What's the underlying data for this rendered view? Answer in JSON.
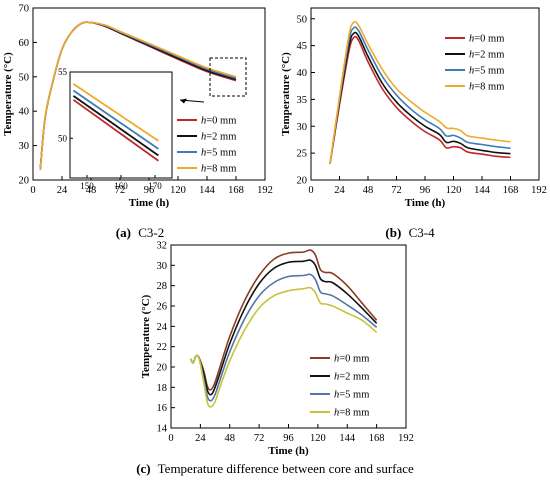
{
  "figure": {
    "captions": {
      "a": {
        "label": "(a)",
        "text": "C3-2"
      },
      "b": {
        "label": "(b)",
        "text": "C3-4"
      },
      "c": {
        "label": "(c)",
        "text": "Temperature difference between core and surface"
      }
    }
  },
  "chart_data": [
    {
      "id": "a",
      "type": "line",
      "xlabel": "Time (h)",
      "ylabel": "Temperature (°C)",
      "xlim": [
        0,
        192
      ],
      "ylim": [
        20,
        70
      ],
      "xticks": [
        0,
        24,
        48,
        72,
        96,
        120,
        144,
        168,
        192
      ],
      "yticks": [
        20,
        30,
        40,
        50,
        60,
        70
      ],
      "legend_position": "bottom-right",
      "grid": false,
      "series": [
        {
          "name": "h=0 mm",
          "color": "#c0272d",
          "x": [
            6,
            10,
            16,
            24,
            32,
            40,
            48,
            60,
            72,
            96,
            120,
            144,
            168
          ],
          "y": [
            23,
            38,
            48,
            58,
            63,
            65.5,
            65.8,
            64.6,
            62.7,
            58.9,
            55.1,
            51.5,
            48.9
          ]
        },
        {
          "name": "h=2 mm",
          "color": "#111111",
          "x": [
            6,
            10,
            16,
            24,
            32,
            40,
            48,
            60,
            72,
            96,
            120,
            144,
            168
          ],
          "y": [
            23,
            38,
            48,
            58,
            63,
            65.5,
            65.8,
            64.7,
            62.8,
            59.1,
            55.4,
            51.8,
            49.2
          ]
        },
        {
          "name": "h=5 mm",
          "color": "#3d7cb8",
          "x": [
            6,
            10,
            16,
            24,
            32,
            40,
            48,
            60,
            72,
            96,
            120,
            144,
            168
          ],
          "y": [
            23,
            38,
            48,
            58,
            63,
            65.5,
            65.8,
            64.8,
            63.0,
            59.4,
            55.8,
            52.2,
            49.6
          ]
        },
        {
          "name": "h=8 mm",
          "color": "#f0a92a",
          "x": [
            6,
            10,
            16,
            24,
            32,
            40,
            48,
            60,
            72,
            96,
            120,
            144,
            168
          ],
          "y": [
            23,
            38,
            48,
            58,
            63,
            65.5,
            65.8,
            65.0,
            63.2,
            59.7,
            56.1,
            52.6,
            50.0
          ]
        }
      ],
      "inset": {
        "xlim": [
          145,
          175
        ],
        "ylim": [
          47,
          55
        ],
        "xticks": [
          150,
          160,
          170
        ],
        "yticks": [
          50,
          55
        ],
        "series": [
          {
            "name": "h=0 mm",
            "color": "#c0272d",
            "x": [
              146,
              171
            ],
            "y": [
              52.9,
              48.3
            ]
          },
          {
            "name": "h=2 mm",
            "color": "#111111",
            "x": [
              146,
              171
            ],
            "y": [
              53.2,
              48.7
            ]
          },
          {
            "name": "h=5 mm",
            "color": "#3d7cb8",
            "x": [
              146,
              171
            ],
            "y": [
              53.6,
              49.2
            ]
          },
          {
            "name": "h=8 mm",
            "color": "#f0a92a",
            "x": [
              146,
              171
            ],
            "y": [
              54.1,
              49.8
            ]
          }
        ]
      }
    },
    {
      "id": "b",
      "type": "line",
      "xlabel": "Time (h)",
      "ylabel": "Temperature (°C)",
      "xlim": [
        0,
        192
      ],
      "ylim": [
        20,
        52
      ],
      "xticks": [
        0,
        24,
        48,
        72,
        96,
        120,
        144,
        168,
        192
      ],
      "yticks": [
        20,
        25,
        30,
        35,
        40,
        45,
        50
      ],
      "legend_position": "top-right",
      "grid": false,
      "series": [
        {
          "name": "h=0 mm",
          "color": "#c0272d",
          "x": [
            16,
            24,
            32,
            36,
            40,
            48,
            60,
            72,
            84,
            96,
            108,
            114,
            120,
            126,
            132,
            144,
            150,
            156,
            168
          ],
          "y": [
            23,
            34,
            44,
            46.5,
            46,
            42,
            37,
            33.5,
            31,
            29,
            27.5,
            26,
            26.2,
            26,
            25.2,
            24.8,
            24.6,
            24.4,
            24.2
          ]
        },
        {
          "name": "h=2 mm",
          "color": "#111111",
          "x": [
            16,
            24,
            32,
            36,
            40,
            48,
            60,
            72,
            84,
            96,
            108,
            114,
            120,
            126,
            132,
            144,
            150,
            156,
            168
          ],
          "y": [
            23,
            34.5,
            45,
            47.3,
            46.8,
            43,
            38,
            34.5,
            32,
            30,
            28.5,
            27,
            27.2,
            26.8,
            26,
            25.5,
            25.3,
            25.1,
            24.9
          ]
        },
        {
          "name": "h=5 mm",
          "color": "#3d7cb8",
          "x": [
            16,
            24,
            32,
            36,
            40,
            48,
            60,
            72,
            84,
            96,
            108,
            114,
            120,
            126,
            132,
            144,
            150,
            156,
            168
          ],
          "y": [
            23,
            35,
            46,
            48.3,
            47.8,
            44.2,
            39.3,
            35.8,
            33.2,
            31.2,
            29.6,
            28.2,
            28.3,
            27.8,
            27,
            26.6,
            26.4,
            26.2,
            25.9
          ]
        },
        {
          "name": "h=8 mm",
          "color": "#f0a92a",
          "x": [
            16,
            24,
            32,
            36,
            40,
            48,
            60,
            72,
            84,
            96,
            108,
            114,
            120,
            126,
            132,
            144,
            150,
            156,
            168
          ],
          "y": [
            23,
            35.5,
            47,
            49.3,
            48.8,
            45.3,
            40.6,
            37,
            34.6,
            32.6,
            30.9,
            29.7,
            29.6,
            29.2,
            28.2,
            27.8,
            27.6,
            27.4,
            27.1
          ]
        }
      ]
    },
    {
      "id": "c",
      "type": "line",
      "xlabel": "Time (h)",
      "ylabel": "Temperature (°C)",
      "xlim": [
        0,
        192
      ],
      "ylim": [
        14,
        32
      ],
      "xticks": [
        0,
        24,
        48,
        72,
        96,
        120,
        144,
        168,
        192
      ],
      "yticks": [
        14,
        16,
        18,
        20,
        22,
        24,
        26,
        28,
        30,
        32
      ],
      "legend_position": "bottom-right",
      "grid": false,
      "series": [
        {
          "name": "h=0 mm",
          "color": "#8b3a24",
          "x": [
            16,
            18,
            20,
            22,
            24,
            27,
            30,
            33,
            36,
            40,
            48,
            60,
            72,
            84,
            96,
            108,
            114,
            118,
            122,
            126,
            132,
            144,
            156,
            168
          ],
          "y": [
            20.8,
            20.4,
            21,
            21.1,
            20.6,
            19.5,
            18,
            17.8,
            18.5,
            20,
            23,
            26.5,
            29,
            30.6,
            31.2,
            31.3,
            31.5,
            31,
            29.6,
            29.3,
            29.2,
            28,
            26.3,
            24.6
          ]
        },
        {
          "name": "h=2 mm",
          "color": "#111111",
          "x": [
            16,
            18,
            20,
            22,
            24,
            27,
            30,
            33,
            36,
            40,
            48,
            60,
            72,
            84,
            96,
            108,
            114,
            118,
            122,
            126,
            132,
            144,
            156,
            168
          ],
          "y": [
            20.8,
            20.4,
            21,
            21.1,
            20.5,
            19.2,
            17.6,
            17.3,
            18,
            19.4,
            22.3,
            25.7,
            28.2,
            29.7,
            30.3,
            30.4,
            30.5,
            30,
            28.7,
            28.4,
            28.3,
            27.2,
            25.8,
            24.3
          ]
        },
        {
          "name": "h=5 mm",
          "color": "#5574a8",
          "x": [
            16,
            18,
            20,
            22,
            24,
            27,
            30,
            33,
            36,
            40,
            48,
            60,
            72,
            84,
            96,
            108,
            114,
            118,
            122,
            126,
            132,
            144,
            156,
            168
          ],
          "y": [
            20.8,
            20.4,
            21,
            21.1,
            20.4,
            18.7,
            17,
            16.7,
            17.3,
            18.7,
            21.5,
            24.7,
            27,
            28.3,
            28.9,
            29,
            29.1,
            28.6,
            27.4,
            27.2,
            27,
            26.1,
            25.1,
            23.9
          ]
        },
        {
          "name": "h=8 mm",
          "color": "#c7c43a",
          "x": [
            16,
            18,
            20,
            22,
            24,
            27,
            30,
            33,
            36,
            40,
            48,
            60,
            72,
            84,
            96,
            108,
            114,
            118,
            122,
            126,
            132,
            144,
            156,
            168
          ],
          "y": [
            20.8,
            20.4,
            21,
            21.1,
            20.3,
            18.3,
            16.4,
            16.1,
            16.6,
            18,
            20.6,
            23.6,
            25.8,
            27,
            27.5,
            27.7,
            27.8,
            27.3,
            26.3,
            26.2,
            26,
            25.3,
            24.6,
            23.4
          ]
        }
      ]
    }
  ]
}
